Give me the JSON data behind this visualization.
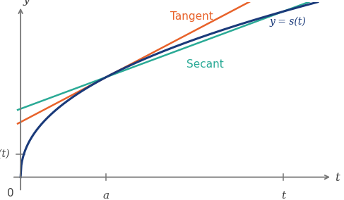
{
  "xlim": [
    -0.3,
    5.6
  ],
  "ylim": [
    -0.5,
    4.2
  ],
  "curve_color": "#1a3a7a",
  "tangent_color": "#e8622a",
  "secant_color": "#2aaa96",
  "a_val": 1.5,
  "t1_val": 4.6,
  "curve_label": "y = s(t)",
  "tangent_label": "Tangent",
  "secant_label": "Secant",
  "x_axis_label": "t",
  "y_axis_label": "y",
  "s_t_label": "s(t)",
  "zero_label": "0",
  "a_label": "a",
  "t_label": "t",
  "background_color": "#ffffff",
  "axis_color": "#777777",
  "label_color_axis": "#404040",
  "curve_linewidth": 2.2,
  "tangent_linewidth": 1.8,
  "secant_linewidth": 1.8
}
